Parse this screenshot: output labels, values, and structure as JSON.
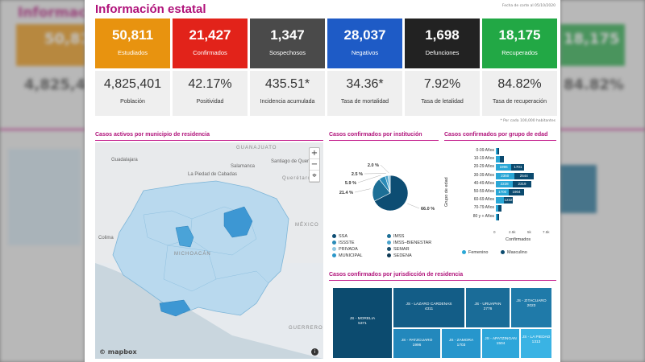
{
  "header": {
    "title": "Información estatal",
    "date": "Fecha de corte al 05/10/2020"
  },
  "cards": [
    {
      "value": "50,811",
      "label": "Estudiados",
      "color": "#e8930f"
    },
    {
      "value": "21,427",
      "label": "Confirmados",
      "color": "#e2231a"
    },
    {
      "value": "1,347",
      "label": "Sospechosos",
      "color": "#4a4a4a"
    },
    {
      "value": "28,037",
      "label": "Negativos",
      "color": "#1e5bc6"
    },
    {
      "value": "1,698",
      "label": "Defunciones",
      "color": "#222222"
    },
    {
      "value": "18,175",
      "label": "Recuperados",
      "color": "#22a845"
    }
  ],
  "stats": [
    {
      "value": "4,825,401",
      "label": "Población"
    },
    {
      "value": "42.17%",
      "label": "Positividad"
    },
    {
      "value": "435.51*",
      "label": "Incidencia acumulada"
    },
    {
      "value": "34.36*",
      "label": "Tasa de mortalidad"
    },
    {
      "value": "7.92%",
      "label": "Tasa de letalidad"
    },
    {
      "value": "84.82%",
      "label": "Tasa de recuperación"
    }
  ],
  "footnote": "* Por cada 100,000 habitantes",
  "background": {
    "left_title": "Informac",
    "right_values": [
      "18,175",
      "84.82%"
    ],
    "left_values": [
      "50,81",
      "4,825,4"
    ]
  },
  "map": {
    "title": "Casos activos por municipio de residencia",
    "places": {
      "guanajuato": "GUANAJUATO",
      "guadalajara": "Guadalajara",
      "la_piedad": "La Piedad de Cabadas",
      "santiago": "Santiago de Querétaro",
      "salamanca": "Salamanca",
      "queretaro": "Querétaro",
      "colima": "Colima",
      "michoacan": "MICHOACÁN",
      "guerrero": "GUERRERO",
      "mexico": "MÉXICO"
    },
    "zoom_in": "+",
    "zoom_out": "−",
    "reset": "⌖",
    "attribution": "© mapbox",
    "info": "i"
  },
  "pie": {
    "title": "Casos confirmados por institución",
    "labels": [
      "66.0 %",
      "21.4 %",
      "5.9 %",
      "2.5 %",
      "2.0 %"
    ],
    "legend": [
      "SSA",
      "IMSS",
      "ISSSTE",
      "IMSS–BIENESTAR",
      "PRIVADA",
      "SEMAR",
      "MUNICIPAL",
      "SEDENA"
    ]
  },
  "age": {
    "title": "Casos confirmados por grupo de edad",
    "ylabel": "Grupo de edad",
    "xlabel": "Confirmados",
    "ticks": [
      "0",
      "2.5k",
      "5k",
      "7.5k"
    ],
    "legend": [
      "Femenino",
      "Masculino"
    ]
  },
  "treemap": {
    "title": "Casos confirmados por jurisdicción de residencia",
    "cells": [
      {
        "name": "JS - MORELIA",
        "value": "5371"
      },
      {
        "name": "JS - LAZARO CARDENAS",
        "value": "4311"
      },
      {
        "name": "JS - URUAPAN",
        "value": "2776"
      },
      {
        "name": "JS - ZITACUARO",
        "value": "2023"
      },
      {
        "name": "JS - PATZCUARO",
        "value": "1996"
      },
      {
        "name": "JS - ZAMORA",
        "value": "1703"
      },
      {
        "name": "JS - APATZINGAN",
        "value": "1504"
      },
      {
        "name": "JS - LA PIEDAD",
        "value": "1313"
      }
    ]
  },
  "chart_data": [
    {
      "type": "pie",
      "title": "Casos confirmados por institución",
      "categories": [
        "SSA",
        "IMSS",
        "ISSSTE",
        "IMSS–BIENESTAR",
        "PRIVADA"
      ],
      "values": [
        66.0,
        21.4,
        5.9,
        2.5,
        2.0
      ],
      "colors": [
        "#0d4d73",
        "#1d6f96",
        "#2a8bb7",
        "#4aa3cc",
        "#8fc6e0"
      ]
    },
    {
      "type": "bar",
      "title": "Casos confirmados por grupo de edad",
      "xlabel": "Confirmados",
      "ylabel": "Grupo de edad",
      "xlim": [
        0,
        7500
      ],
      "categories": [
        "0-09 Años",
        "10-19 Años",
        "20-29 Años",
        "30-39 Años",
        "40-49 Años",
        "50-59 Años",
        "60-69 Años",
        "70-79 Años",
        "80 y + Años"
      ],
      "series": [
        {
          "name": "Femenino",
          "values": [
            220,
            520,
            1996,
            2350,
            2228,
            1700,
            1000,
            320,
            180
          ],
          "labels": [
            "",
            "",
            "1996",
            "2350",
            "2228",
            "1700",
            "",
            "",
            ""
          ],
          "color": "#2aa7d6"
        },
        {
          "name": "Masculino",
          "values": [
            230,
            540,
            1701,
            2544,
            2319,
            1904,
            1232,
            450,
            220
          ],
          "labels": [
            "",
            "",
            "1701",
            "2544",
            "2319",
            "1904",
            "1232",
            "",
            ""
          ],
          "color": "#0b4a6e"
        }
      ]
    },
    {
      "type": "treemap",
      "title": "Casos confirmados por jurisdicción de residencia",
      "categories": [
        "JS - MORELIA",
        "JS - LAZARO CARDENAS",
        "JS - URUAPAN",
        "JS - ZITACUARO",
        "JS - PATZCUARO",
        "JS - ZAMORA",
        "JS - APATZINGAN",
        "JS - LA PIEDAD"
      ],
      "values": [
        5371,
        4311,
        2776,
        2023,
        1996,
        1703,
        1504,
        1313
      ]
    }
  ]
}
